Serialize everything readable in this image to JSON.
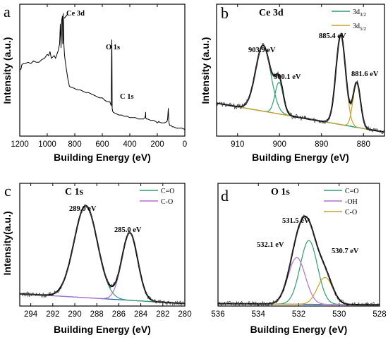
{
  "chart_data": [
    {
      "id": "a",
      "type": "line",
      "panel_label": "a",
      "xlabel": "Building Energy (eV)",
      "ylabel": "Intensity (a.u.)",
      "xlim": [
        1200,
        0
      ],
      "xticks": [
        "1200",
        "1000",
        "800",
        "600",
        "400",
        "200",
        "0"
      ],
      "ylim": [
        0,
        100
      ],
      "annotations": [
        {
          "text": "Ce 3d",
          "x": 900,
          "y": 92
        },
        {
          "text": "O 1s",
          "x": 531,
          "y": 68
        },
        {
          "text": "C 1s",
          "x": 285,
          "y": 24
        }
      ],
      "series": [
        {
          "color": "#000000",
          "x": [
            1200,
            1190,
            1185,
            1175,
            1160,
            1140,
            1120,
            1100,
            1080,
            1060,
            1040,
            1020,
            1000,
            990,
            980,
            970,
            960,
            950,
            940,
            930,
            920,
            910,
            905,
            903,
            900,
            898,
            895,
            890,
            887,
            885,
            883,
            880,
            875,
            870,
            860,
            850,
            845,
            840,
            830,
            820,
            800,
            780,
            760,
            740,
            720,
            700,
            680,
            660,
            640,
            620,
            600,
            580,
            560,
            545,
            535,
            532,
            531,
            530,
            528,
            525,
            520,
            500,
            480,
            460,
            440,
            420,
            400,
            380,
            360,
            340,
            320,
            300,
            290,
            286,
            285,
            284,
            280,
            270,
            250,
            230,
            210,
            200,
            190,
            170,
            150,
            130,
            125,
            122,
            120,
            118,
            115,
            110,
            100,
            90,
            80,
            60,
            40,
            20,
            0
          ],
          "y": [
            50,
            51,
            54,
            55,
            55,
            56,
            55,
            57,
            56,
            56,
            58,
            59,
            62,
            61,
            64,
            59,
            60,
            61,
            59,
            62,
            65,
            70,
            85,
            80,
            67,
            75,
            88,
            91,
            70,
            75,
            93,
            71,
            62,
            57,
            50,
            43,
            41,
            38,
            37,
            37,
            36,
            35,
            35,
            34,
            33,
            33,
            32,
            31,
            30,
            29,
            29,
            27,
            26,
            26,
            23,
            70,
            73,
            60,
            21,
            19,
            18,
            17,
            16,
            16,
            15,
            15,
            14,
            14,
            14,
            13,
            13,
            13,
            14,
            16,
            18,
            14,
            13,
            13,
            12,
            12,
            11,
            10,
            11,
            10,
            10,
            11,
            13,
            18,
            21,
            15,
            10,
            8,
            8,
            7,
            7,
            6,
            6,
            6,
            5
          ]
        }
      ]
    },
    {
      "id": "b",
      "type": "line",
      "panel_label": "b",
      "title": "Ce 3d",
      "xlabel": "Building Energy (eV)",
      "ylabel": "Intensity (a.u.)",
      "xlim": [
        915,
        875
      ],
      "xticks": [
        "910",
        "900",
        "890",
        "880"
      ],
      "ylim": [
        0,
        100
      ],
      "legend": {
        "position": "top-right",
        "entries": [
          {
            "label": "3d",
            "subscript": "3/2",
            "color": "#2e9e6e"
          },
          {
            "label": "3d",
            "subscript": "5/2",
            "color": "#c9a227"
          }
        ]
      },
      "annotations": [
        {
          "text": "903.9 eV",
          "x": 903.9
        },
        {
          "text": "900.1 eV",
          "x": 900.1
        },
        {
          "text": "885.4 eV",
          "x": 885.4
        },
        {
          "text": "881.6 eV",
          "x": 881.6
        }
      ],
      "background": {
        "color": "#1f5aa8",
        "x": [
          915,
          875
        ],
        "y": [
          25,
          3
        ]
      },
      "peaks": [
        {
          "center": 903.9,
          "height": 50,
          "fwhm": 4.2,
          "color": "#2e9e6e"
        },
        {
          "center": 900.1,
          "height": 24,
          "fwhm": 2.3,
          "color": "#2e9e6e"
        },
        {
          "center": 885.4,
          "height": 68,
          "fwhm": 2.7,
          "color": "#c9a227"
        },
        {
          "center": 881.6,
          "height": 34,
          "fwhm": 2.1,
          "color": "#c9a227"
        }
      ]
    },
    {
      "id": "c",
      "type": "line",
      "panel_label": "c",
      "title": "C 1s",
      "xlabel": "Building Energy (eV)",
      "ylabel": "Intensity(a.u.)",
      "xlim": [
        295,
        280
      ],
      "xticks": [
        "294",
        "292",
        "290",
        "288",
        "286",
        "284",
        "282",
        "280"
      ],
      "ylim": [
        0,
        100
      ],
      "legend": {
        "position": "top-right",
        "entries": [
          {
            "label": "C=O",
            "color": "#2e9e6e"
          },
          {
            "label": "C-O",
            "color": "#b36fd0"
          }
        ]
      },
      "annotations": [
        {
          "text": "289.0 eV",
          "x": 289.0
        },
        {
          "text": "285.0 eV",
          "x": 285.0
        }
      ],
      "background": {
        "color": "#1f5aa8",
        "x": [
          295,
          280
        ],
        "y": [
          10,
          2
        ]
      },
      "peaks": [
        {
          "center": 289.0,
          "height": 75,
          "fwhm": 2.5,
          "color": "#2e9e6e"
        },
        {
          "center": 285.0,
          "height": 55,
          "fwhm": 1.7,
          "color": "#b36fd0"
        }
      ]
    },
    {
      "id": "d",
      "type": "line",
      "panel_label": "d",
      "title": "O 1s",
      "xlabel": "Building Energy (eV)",
      "ylabel": "",
      "xlim": [
        536,
        528
      ],
      "xticks": [
        "536",
        "534",
        "532",
        "530",
        "528"
      ],
      "ylim": [
        0,
        100
      ],
      "legend": {
        "position": "top-right",
        "entries": [
          {
            "label": "C=O",
            "color": "#2e9e6e"
          },
          {
            "label": "-OH",
            "color": "#b36fd0"
          },
          {
            "label": "C-O",
            "color": "#c9a227"
          }
        ]
      },
      "annotations": [
        {
          "text": "531.5 eV",
          "x": 531.5
        },
        {
          "text": "532.1 eV",
          "x": 532.1
        },
        {
          "text": "530.7 eV",
          "x": 530.7
        }
      ],
      "background": {
        "color": "#1f5aa8",
        "x": [
          536,
          528
        ],
        "y": [
          2,
          1
        ]
      },
      "peaks": [
        {
          "center": 531.5,
          "height": 52,
          "fwhm": 1.0,
          "color": "#2e9e6e"
        },
        {
          "center": 532.1,
          "height": 38,
          "fwhm": 1.0,
          "color": "#b36fd0"
        },
        {
          "center": 530.7,
          "height": 22,
          "fwhm": 0.9,
          "color": "#c9a227"
        }
      ]
    }
  ]
}
